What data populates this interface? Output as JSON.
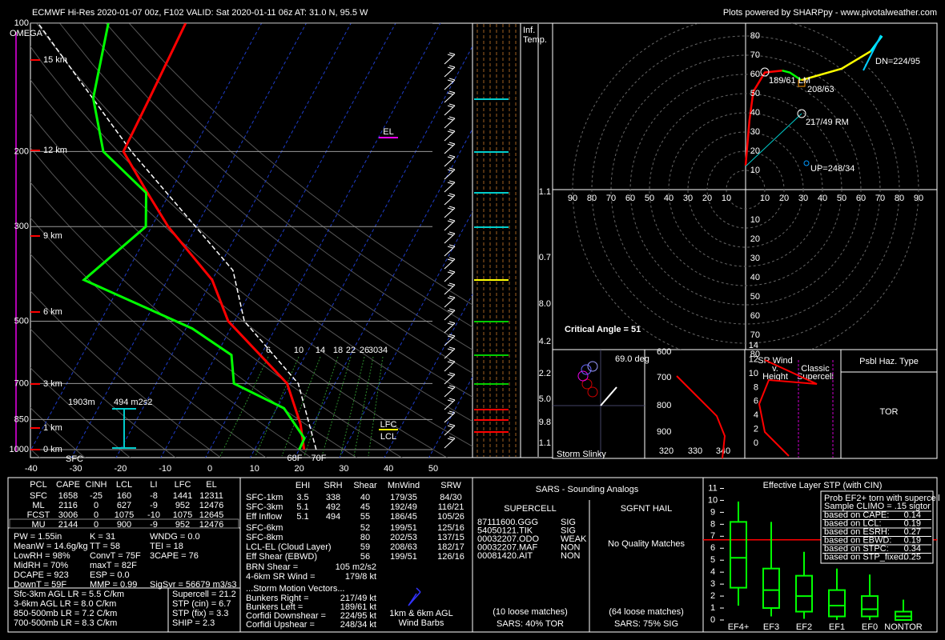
{
  "header": {
    "title": "ECMWF Hi-Res 2020-01-07 00z, F102    VALID: Sat 2020-01-11 06z    AT: 31.0 N, 95.5 W",
    "credit": "Plots powered by SHARPpy - www.pivotalweather.com"
  },
  "skewt": {
    "omega": "OMEGA",
    "pressure_ticks": [
      100,
      200,
      300,
      500,
      700,
      850,
      1000
    ],
    "temp_ticks": [
      -40,
      -30,
      -20,
      -10,
      0,
      10,
      20,
      30,
      40,
      50
    ],
    "heights": [
      "15 km",
      "12 km",
      "9 km",
      "6 km",
      "3 km",
      "1 km",
      "0 km"
    ],
    "temperature": {
      "color": "#ff0000",
      "pressure": [
        1000,
        871,
        700,
        500,
        400,
        300,
        250,
        200,
        150,
        100
      ],
      "values": [
        21.1,
        17.2,
        9.3,
        -11.4,
        -20,
        -36.3,
        -45,
        -55.4,
        -56,
        -57
      ]
    },
    "dewpoint": {
      "color": "#00ff00",
      "pressure": [
        1000,
        941,
        800,
        700,
        600,
        520,
        400,
        300,
        250,
        200,
        150,
        100
      ],
      "values": [
        20,
        19.8,
        11.6,
        -2.6,
        -6.6,
        -18.6,
        -48.7,
        -41.3,
        -45.3,
        -59.9,
        -68.6,
        -74.3
      ]
    },
    "parcel": {
      "color": "#ffffff",
      "pressure": [
        1000,
        700,
        500,
        380,
        200,
        100
      ],
      "values": [
        23.8,
        11.8,
        -7.8,
        -16.5,
        -53.6,
        -90
      ]
    },
    "sfc": "SFC",
    "t_sfc": "70F",
    "td_sfc": "68F",
    "el": "EL",
    "lfc": "LFC",
    "lcl": "LCL",
    "inflow_depth": "1903m",
    "inflow_srh": "494 m2s2",
    "mixing_ratios": [
      6,
      10,
      14,
      18,
      22,
      26,
      30,
      34
    ]
  },
  "inference": {
    "title": [
      "Inf.",
      "Temp."
    ],
    "labels": [
      "1.1",
      "0.7",
      "8.0",
      "4.2",
      "2.2",
      "5.0",
      "9.8",
      "1.1"
    ]
  },
  "hodo": {
    "ticks": [
      10,
      20,
      30,
      40,
      50,
      60,
      70,
      80,
      90
    ],
    "segments": [
      {
        "color": "#ff0000",
        "u": [
          0,
          2,
          4,
          10,
          19
        ],
        "v": [
          12.5,
          36,
          51,
          61,
          62
        ]
      },
      {
        "color": "#00ff00",
        "u": [
          19,
          23,
          29
        ],
        "v": [
          62,
          61,
          57
        ]
      },
      {
        "color": "#ffff00",
        "u": [
          29,
          50,
          65
        ],
        "v": [
          57,
          63,
          72
        ]
      },
      {
        "color": "#00ffff",
        "u": [
          65,
          71
        ],
        "v": [
          72,
          80
        ]
      }
    ],
    "dn": "DN=224/95",
    "lm": "189/61 LM",
    "mean": "208/63",
    "rm": "217/49 RM",
    "up": "UP=248/34",
    "critical": "Critical Angle = 51"
  },
  "slinky": {
    "angle": "69.0 deg",
    "title": "Storm Slinky"
  },
  "theta": {
    "yticks": [
      600,
      700,
      800,
      900
    ],
    "xticks": [
      320,
      330,
      340
    ]
  },
  "srwind": {
    "title": [
      "SR Wind",
      "v.",
      "Height"
    ],
    "classic": [
      "Classic",
      "Supercell"
    ],
    "yticks": [
      0,
      2,
      4,
      6,
      8,
      10,
      12,
      14
    ]
  },
  "hazard": {
    "title": "Psbl Haz. Type",
    "value": "TOR"
  },
  "parcels": {
    "headers": [
      "PCL",
      "CAPE",
      "CINH",
      "LCL",
      "LI",
      "LFC",
      "EL"
    ],
    "rows": [
      [
        "SFC",
        "1658",
        "-25",
        "160",
        "-8",
        "1441",
        "12311"
      ],
      [
        "ML",
        "2116",
        "0",
        "627",
        "-9",
        "952",
        "12476"
      ],
      [
        "FCST",
        "3006",
        "0",
        "1075",
        "-10",
        "1075",
        "12645"
      ],
      [
        "MU",
        "2144",
        "0",
        "900",
        "-9",
        "952",
        "12476"
      ]
    ]
  },
  "indices": {
    "col1": [
      "PW = 1.55in",
      "MeanW = 14.6g/kg",
      "LowRH = 98%",
      "MidRH = 70%",
      "DCAPE = 923",
      "DownT = 59F"
    ],
    "col2": [
      "K = 31",
      "TT = 58",
      "ConvT = 75F",
      "maxT = 82F",
      "ESP = 0.0",
      "MMP = 0.99"
    ],
    "col3": [
      "WNDG = 0.0",
      "TEI = 18",
      "3CAPE = 76",
      "SigSvr = 56679 m3/s3"
    ]
  },
  "lapse": [
    "Sfc-3km AGL LR = 5.5 C/km",
    "3-6km AGL LR = 8.0 C/km",
    "850-500mb LR = 7.2 C/km",
    "700-500mb LR = 8.3 C/km"
  ],
  "params": [
    "Supercell = 21.2",
    "STP (cin) = 6.7",
    "STP (fix) = 3.3",
    "SHIP = 2.3"
  ],
  "kinematics": {
    "headers": [
      "EHI",
      "SRH",
      "Shear",
      "MnWind",
      "SRW"
    ],
    "rows": [
      [
        "SFC-1km",
        "3.5",
        "338",
        "40",
        "179/35",
        "84/30"
      ],
      [
        "SFC-3km",
        "5.1",
        "492",
        "45",
        "192/49",
        "116/21"
      ],
      [
        "Eff Inflow",
        "5.1",
        "494",
        "55",
        "186/45",
        "105/26"
      ],
      [
        "SFC-6km",
        "52",
        "199/51",
        "125/16"
      ],
      [
        "SFC-8km",
        "80",
        "202/53",
        "137/15"
      ],
      [
        "LCL-EL (Cloud Layer)",
        "59",
        "208/63",
        "182/17"
      ],
      [
        "Eff Shear (EBWD)",
        "56",
        "199/51",
        "126/16"
      ]
    ],
    "extra": [
      [
        "BRN Shear =",
        "105 m2/s2"
      ],
      [
        "4-6km SR Wind =",
        "179/8 kt"
      ]
    ],
    "motion_title": "...Storm Motion Vectors...",
    "motion": [
      [
        "Bunkers Right =",
        "217/49 kt"
      ],
      [
        "Bunkers Left =",
        "189/61 kt"
      ],
      [
        "Corfidi Downshear =",
        "224/95 kt"
      ],
      [
        "Corfidi Upshear =",
        "248/34 kt"
      ]
    ],
    "barb_legend": [
      "1km & 6km AGL",
      "Wind Barbs"
    ]
  },
  "sars": {
    "title": "SARS - Sounding Analogs",
    "supercell": "SUPERCELL",
    "hail": "SGFNT HAIL",
    "matches": [
      [
        "87111600.GGG",
        "SIG"
      ],
      [
        "54050121.TIK",
        "SIG"
      ],
      [
        "00032207.ODO",
        "WEAK"
      ],
      [
        "00032207.MAF",
        "NON"
      ],
      [
        "00081420.AIT",
        "NON"
      ]
    ],
    "hail_none": "No Quality Matches",
    "sc_loose": "(10 loose matches)",
    "sc_result": "SARS: 40% TOR",
    "hail_loose": "(64 loose matches)",
    "hail_result": "SARS: 75% SIG"
  },
  "stp": {
    "type": "box",
    "title": "Effective Layer STP (with CIN)",
    "color": "#00ff00",
    "categories": [
      "EF4+",
      "EF3",
      "EF2",
      "EF1",
      "EF0",
      "NONTOR"
    ],
    "whislo": [
      1.2,
      0.3,
      0.1,
      0,
      0,
      0
    ],
    "q1": [
      2.7,
      1.0,
      0.7,
      0.3,
      0.3,
      0
    ],
    "med": [
      5.2,
      2.5,
      2.0,
      1.2,
      0.9,
      0.3
    ],
    "q3": [
      8.2,
      4.3,
      3.7,
      2.5,
      2.0,
      0.7
    ],
    "whishi": [
      9.9,
      8.2,
      5.7,
      4.3,
      3.8,
      1.7
    ],
    "ylim": [
      0,
      11.3
    ],
    "yticks": [
      0,
      1,
      2,
      3,
      4,
      5,
      6,
      7,
      8,
      9,
      10,
      11
    ],
    "current": 6.7,
    "legend": {
      "lines": [
        "Prob EF2+ torn with supercell",
        "Sample CLIMO = .15 sigtor"
      ],
      "rows": [
        [
          "based on CAPE:",
          "0.14"
        ],
        [
          "based on LCL:",
          "0.19"
        ],
        [
          "based on ESRH:",
          "0.27"
        ],
        [
          "based on EBWD:",
          "0.19"
        ],
        [
          "based on STPC:",
          "0.34"
        ],
        [
          "based on STP_fixed:",
          "0.25"
        ]
      ]
    }
  }
}
